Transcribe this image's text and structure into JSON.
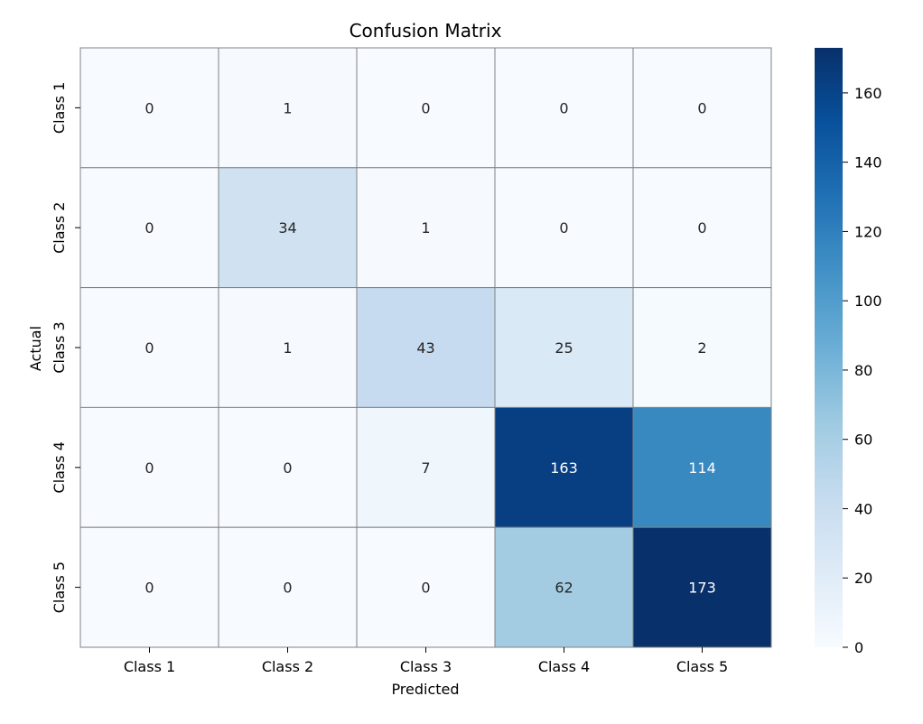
{
  "chart_data": {
    "type": "heatmap",
    "title": "Confusion Matrix",
    "xlabel": "Predicted",
    "ylabel": "Actual",
    "x_categories": [
      "Class 1",
      "Class 2",
      "Class 3",
      "Class 4",
      "Class 5"
    ],
    "y_categories": [
      "Class 1",
      "Class 2",
      "Class 3",
      "Class 4",
      "Class 5"
    ],
    "values": [
      [
        0,
        1,
        0,
        0,
        0
      ],
      [
        0,
        34,
        1,
        0,
        0
      ],
      [
        0,
        1,
        43,
        25,
        2
      ],
      [
        0,
        0,
        7,
        163,
        114
      ],
      [
        0,
        0,
        0,
        62,
        173
      ]
    ],
    "colormap": "Blues",
    "vmin": 0,
    "vmax": 173,
    "colorbar_ticks": [
      0,
      20,
      40,
      60,
      80,
      100,
      120,
      140,
      160
    ],
    "cell_border_color": "#808080"
  }
}
